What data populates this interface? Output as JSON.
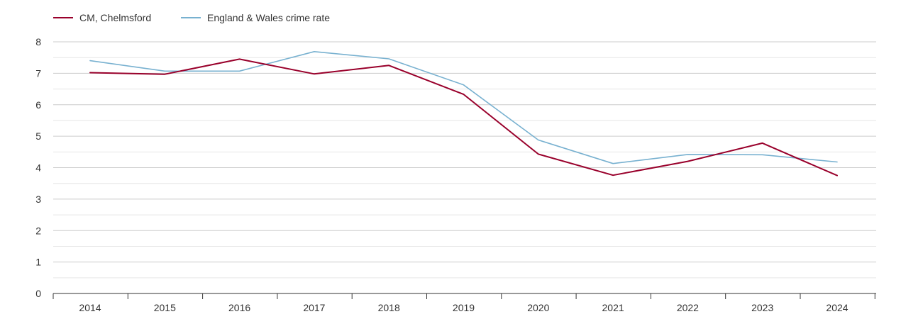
{
  "colors": {
    "series_1": "#99002b",
    "series_2": "#78b1d0",
    "grid_major": "#cccccc",
    "grid_minor": "#e6e6e6",
    "axis": "#333333",
    "text": "#333333"
  },
  "chart_data": {
    "type": "line",
    "title": "",
    "xlabel": "",
    "ylabel": "",
    "x": [
      "2014",
      "2015",
      "2016",
      "2017",
      "2018",
      "2019",
      "2020",
      "2021",
      "2022",
      "2023",
      "2024"
    ],
    "series": [
      {
        "name": "CM, Chelmsford",
        "values": [
          7.02,
          6.97,
          7.45,
          6.98,
          7.25,
          6.33,
          4.43,
          3.76,
          4.2,
          4.78,
          3.75
        ]
      },
      {
        "name": "England & Wales crime rate",
        "values": [
          7.4,
          7.07,
          7.07,
          7.69,
          7.46,
          6.63,
          4.88,
          4.13,
          4.42,
          4.41,
          4.18
        ]
      }
    ],
    "ylim": [
      0,
      8
    ],
    "yticks": [
      "0",
      "1",
      "2",
      "3",
      "4",
      "5",
      "6",
      "7",
      "8"
    ],
    "grid": true,
    "minor_grid": true,
    "legend_position": "top-left"
  }
}
